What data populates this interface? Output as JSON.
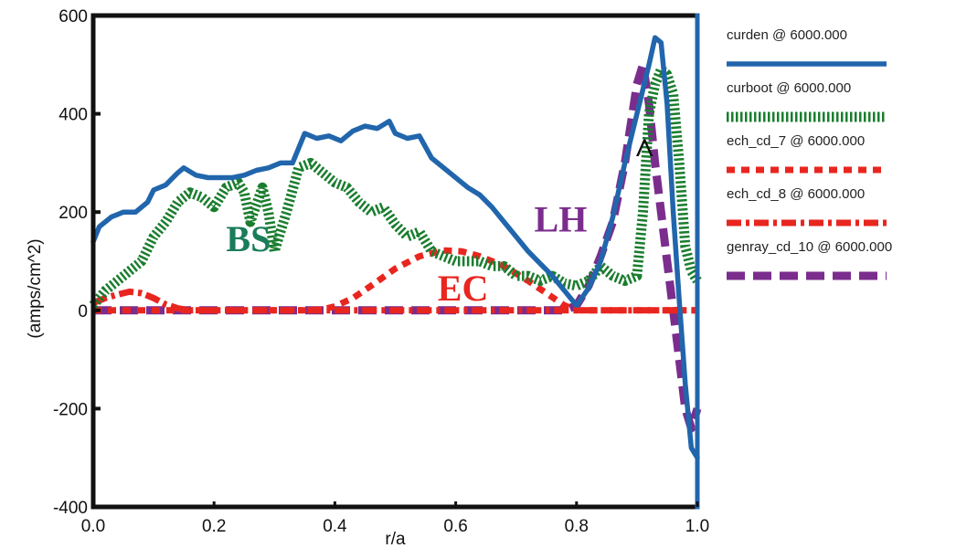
{
  "chart_data": {
    "type": "line",
    "xlabel": "r/a",
    "ylabel": "(amps/cm^2)",
    "xlim": [
      0.0,
      1.0
    ],
    "ylim": [
      -400,
      600
    ],
    "x_ticks": [
      "0.0",
      "0.2",
      "0.4",
      "0.6",
      "0.8",
      "1.0"
    ],
    "y_ticks": [
      "-400",
      "-200",
      "0",
      "200",
      "400",
      "600"
    ],
    "grid": false,
    "legend_position": "right",
    "series": [
      {
        "name": "curden @ 6000.000",
        "color": "#2166ac",
        "style": "solid",
        "x": [
          0.0,
          0.01,
          0.03,
          0.05,
          0.07,
          0.09,
          0.1,
          0.12,
          0.14,
          0.15,
          0.17,
          0.19,
          0.21,
          0.23,
          0.25,
          0.27,
          0.29,
          0.31,
          0.33,
          0.34,
          0.35,
          0.37,
          0.39,
          0.41,
          0.43,
          0.45,
          0.47,
          0.49,
          0.5,
          0.52,
          0.54,
          0.56,
          0.58,
          0.6,
          0.62,
          0.64,
          0.66,
          0.68,
          0.7,
          0.72,
          0.74,
          0.76,
          0.78,
          0.8,
          0.82,
          0.84,
          0.86,
          0.88,
          0.9,
          0.91,
          0.92,
          0.93,
          0.94,
          0.95,
          0.96,
          0.97,
          0.98,
          0.99,
          1.0
        ],
        "values": [
          140,
          170,
          190,
          200,
          200,
          220,
          245,
          255,
          280,
          290,
          275,
          270,
          270,
          270,
          275,
          285,
          290,
          300,
          300,
          330,
          360,
          350,
          355,
          345,
          365,
          375,
          370,
          385,
          360,
          350,
          355,
          310,
          290,
          270,
          250,
          235,
          210,
          180,
          150,
          120,
          95,
          70,
          40,
          10,
          45,
          100,
          190,
          300,
          400,
          450,
          500,
          555,
          545,
          420,
          200,
          20,
          -150,
          -280,
          -300
        ]
      },
      {
        "name": "curboot @ 6000.000",
        "color": "#1a7d2e",
        "style": "dotted",
        "x": [
          0.0,
          0.02,
          0.05,
          0.08,
          0.1,
          0.12,
          0.14,
          0.16,
          0.18,
          0.2,
          0.22,
          0.24,
          0.25,
          0.26,
          0.28,
          0.29,
          0.3,
          0.32,
          0.34,
          0.36,
          0.38,
          0.4,
          0.42,
          0.44,
          0.46,
          0.48,
          0.5,
          0.52,
          0.54,
          0.56,
          0.58,
          0.6,
          0.62,
          0.64,
          0.66,
          0.68,
          0.7,
          0.72,
          0.74,
          0.76,
          0.78,
          0.8,
          0.82,
          0.84,
          0.86,
          0.88,
          0.9,
          0.91,
          0.92,
          0.93,
          0.94,
          0.95,
          0.96,
          0.97,
          0.98,
          0.99,
          1.0
        ],
        "values": [
          10,
          40,
          70,
          100,
          150,
          180,
          220,
          240,
          230,
          210,
          250,
          260,
          240,
          180,
          250,
          200,
          120,
          200,
          290,
          300,
          280,
          260,
          250,
          220,
          200,
          210,
          175,
          150,
          160,
          120,
          110,
          100,
          100,
          100,
          90,
          90,
          70,
          70,
          60,
          70,
          55,
          50,
          60,
          90,
          70,
          60,
          70,
          200,
          400,
          460,
          490,
          480,
          440,
          300,
          130,
          80,
          60
        ]
      },
      {
        "name": "ech_cd_7 @ 6000.000",
        "color": "#e8261f",
        "style": "dashed",
        "x": [
          0.0,
          0.1,
          0.2,
          0.3,
          0.35,
          0.38,
          0.4,
          0.43,
          0.46,
          0.5,
          0.54,
          0.58,
          0.61,
          0.64,
          0.68,
          0.72,
          0.75,
          0.78,
          0.8,
          0.85,
          0.9,
          0.95,
          1.0
        ],
        "values": [
          0,
          0,
          0,
          0,
          0,
          2,
          8,
          25,
          50,
          85,
          110,
          122,
          120,
          110,
          90,
          60,
          35,
          10,
          0,
          0,
          0,
          0,
          0
        ]
      },
      {
        "name": "ech_cd_8 @ 6000.000",
        "color": "#e8261f",
        "style": "dashdot",
        "x": [
          0.0,
          0.02,
          0.04,
          0.06,
          0.08,
          0.1,
          0.12,
          0.14,
          0.16,
          0.2,
          0.4,
          0.6,
          0.8,
          0.9,
          1.0
        ],
        "values": [
          15,
          25,
          32,
          38,
          35,
          25,
          12,
          4,
          0,
          0,
          0,
          0,
          0,
          0,
          0
        ]
      },
      {
        "name": "genray_cd_10 @ 6000.000",
        "color": "#7b2d8e",
        "style": "longdash",
        "x": [
          0.0,
          0.2,
          0.4,
          0.6,
          0.78,
          0.8,
          0.82,
          0.84,
          0.86,
          0.88,
          0.89,
          0.9,
          0.91,
          0.92,
          0.93,
          0.94,
          0.95,
          0.96,
          0.97,
          0.98,
          0.99,
          1.0
        ],
        "values": [
          0,
          0,
          0,
          0,
          0,
          10,
          50,
          110,
          180,
          300,
          380,
          460,
          500,
          420,
          300,
          200,
          100,
          0,
          -100,
          -200,
          -240,
          -200
        ]
      }
    ],
    "annotations": [
      {
        "text": "BS",
        "color": "#1a7d5a",
        "x": 0.22,
        "y": 120
      },
      {
        "text": "EC",
        "color": "#e8261f",
        "x": 0.57,
        "y": 20
      },
      {
        "text": "LH",
        "color": "#7b2d8e",
        "x": 0.73,
        "y": 160
      },
      {
        "text": "^",
        "color": "#111111",
        "x": 0.895,
        "y": 300
      }
    ]
  }
}
